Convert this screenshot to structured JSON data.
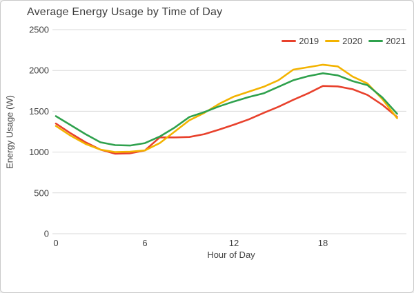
{
  "window": {
    "background": "#ffffff",
    "border_color": "#c9c9c9"
  },
  "chart_data": {
    "type": "line",
    "title": "Average Energy Usage by Time of Day",
    "xlabel": "Hour of Day",
    "ylabel": "Energy Usage (W)",
    "x": [
      0,
      1,
      2,
      3,
      4,
      5,
      6,
      7,
      8,
      9,
      10,
      11,
      12,
      13,
      14,
      15,
      16,
      17,
      18,
      19,
      20,
      21,
      22,
      23
    ],
    "xticks": [
      0,
      6,
      12,
      18
    ],
    "yticks": [
      0,
      500,
      1000,
      1500,
      2000,
      2500
    ],
    "ylim": [
      0,
      2500
    ],
    "xlim": [
      0,
      23
    ],
    "grid": "horizontal",
    "legend_position": "top-right",
    "text_color": "#424242",
    "grid_color": "#d9d9d9",
    "series": [
      {
        "name": "2019",
        "color": "#e8412c",
        "values": [
          1350,
          1230,
          1120,
          1030,
          980,
          985,
          1020,
          1180,
          1180,
          1185,
          1220,
          1275,
          1335,
          1400,
          1480,
          1555,
          1640,
          1720,
          1810,
          1805,
          1770,
          1700,
          1580,
          1430
        ]
      },
      {
        "name": "2020",
        "color": "#f3b300",
        "values": [
          1320,
          1200,
          1100,
          1030,
          1000,
          1005,
          1020,
          1110,
          1250,
          1390,
          1480,
          1590,
          1680,
          1740,
          1800,
          1880,
          2010,
          2040,
          2070,
          2050,
          1925,
          1840,
          1650,
          1415
        ]
      },
      {
        "name": "2021",
        "color": "#2fa14d",
        "values": [
          1440,
          1330,
          1220,
          1120,
          1085,
          1080,
          1110,
          1190,
          1300,
          1430,
          1490,
          1560,
          1620,
          1675,
          1720,
          1800,
          1880,
          1930,
          1965,
          1940,
          1870,
          1820,
          1670,
          1470
        ]
      }
    ]
  }
}
